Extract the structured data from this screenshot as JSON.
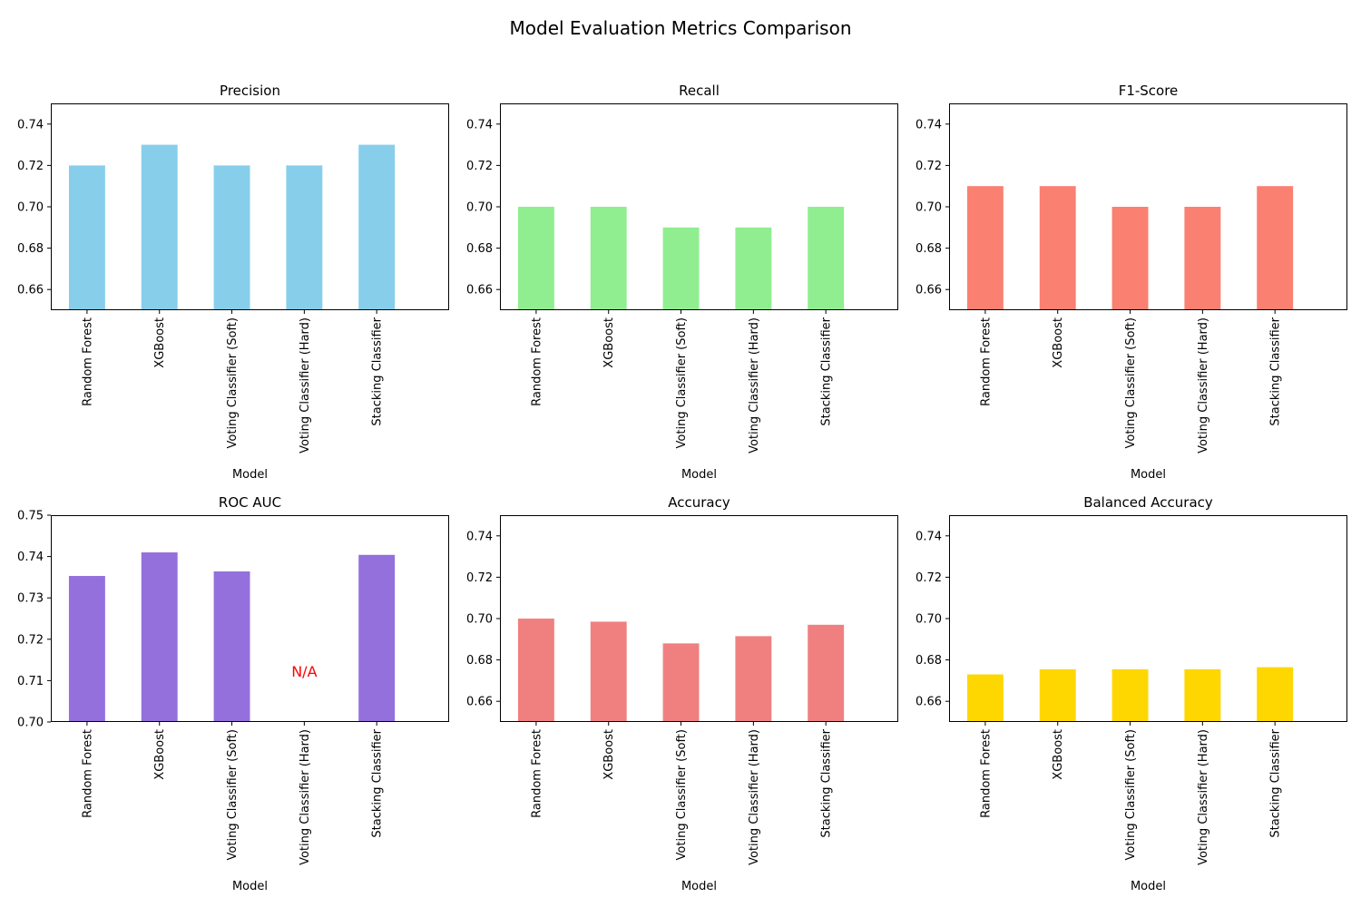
{
  "figure": {
    "title": "Model Evaluation Metrics Comparison"
  },
  "chart_data": [
    {
      "type": "bar",
      "title": "Precision",
      "xlabel": "Model",
      "ylabel": "",
      "categories": [
        "Random Forest",
        "XGBoost",
        "Voting Classifier (Soft)",
        "Voting Classifier (Hard)",
        "Stacking Classifier"
      ],
      "values": [
        0.72,
        0.73,
        0.72,
        0.72,
        0.73
      ],
      "ylim": [
        0.65,
        0.75
      ],
      "yticks": [
        0.66,
        0.68,
        0.7,
        0.72,
        0.74
      ],
      "ytick_labels": [
        "0.66",
        "0.68",
        "0.70",
        "0.72",
        "0.74"
      ],
      "color": "#87ceeb",
      "legend": false,
      "grid": false
    },
    {
      "type": "bar",
      "title": "Recall",
      "xlabel": "Model",
      "ylabel": "",
      "categories": [
        "Random Forest",
        "XGBoost",
        "Voting Classifier (Soft)",
        "Voting Classifier (Hard)",
        "Stacking Classifier"
      ],
      "values": [
        0.7,
        0.7,
        0.69,
        0.69,
        0.7
      ],
      "ylim": [
        0.65,
        0.75
      ],
      "yticks": [
        0.66,
        0.68,
        0.7,
        0.72,
        0.74
      ],
      "ytick_labels": [
        "0.66",
        "0.68",
        "0.70",
        "0.72",
        "0.74"
      ],
      "color": "#90ee90",
      "legend": false,
      "grid": false
    },
    {
      "type": "bar",
      "title": "F1-Score",
      "xlabel": "Model",
      "ylabel": "",
      "categories": [
        "Random Forest",
        "XGBoost",
        "Voting Classifier (Soft)",
        "Voting Classifier (Hard)",
        "Stacking Classifier"
      ],
      "values": [
        0.71,
        0.71,
        0.7,
        0.7,
        0.71
      ],
      "ylim": [
        0.65,
        0.75
      ],
      "yticks": [
        0.66,
        0.68,
        0.7,
        0.72,
        0.74
      ],
      "ytick_labels": [
        "0.66",
        "0.68",
        "0.70",
        "0.72",
        "0.74"
      ],
      "color": "#fa8072",
      "legend": false,
      "grid": false
    },
    {
      "type": "bar",
      "title": "ROC AUC",
      "xlabel": "Model",
      "ylabel": "",
      "categories": [
        "Random Forest",
        "XGBoost",
        "Voting Classifier (Soft)",
        "Voting Classifier (Hard)",
        "Stacking Classifier"
      ],
      "values": [
        0.7353,
        0.741,
        0.7364,
        null,
        0.7404
      ],
      "ylim": [
        0.7,
        0.75
      ],
      "yticks": [
        0.7,
        0.71,
        0.72,
        0.73,
        0.74,
        0.75
      ],
      "ytick_labels": [
        "0.70",
        "0.71",
        "0.72",
        "0.73",
        "0.74",
        "0.75"
      ],
      "color": "#9370db",
      "legend": false,
      "grid": false,
      "annotations": [
        {
          "category": "Voting Classifier (Hard)",
          "y": 0.711,
          "text": "N/A",
          "color": "#ff0000"
        }
      ]
    },
    {
      "type": "bar",
      "title": "Accuracy",
      "xlabel": "Model",
      "ylabel": "",
      "categories": [
        "Random Forest",
        "XGBoost",
        "Voting Classifier (Soft)",
        "Voting Classifier (Hard)",
        "Stacking Classifier"
      ],
      "values": [
        0.7,
        0.6985,
        0.688,
        0.6915,
        0.697
      ],
      "ylim": [
        0.65,
        0.75
      ],
      "yticks": [
        0.66,
        0.68,
        0.7,
        0.72,
        0.74
      ],
      "ytick_labels": [
        "0.66",
        "0.68",
        "0.70",
        "0.72",
        "0.74"
      ],
      "color": "#f08080",
      "legend": false,
      "grid": false
    },
    {
      "type": "bar",
      "title": "Balanced Accuracy",
      "xlabel": "Model",
      "ylabel": "",
      "categories": [
        "Random Forest",
        "XGBoost",
        "Voting Classifier (Soft)",
        "Voting Classifier (Hard)",
        "Stacking Classifier"
      ],
      "values": [
        0.673,
        0.6755,
        0.6755,
        0.6755,
        0.6765
      ],
      "ylim": [
        0.65,
        0.75
      ],
      "yticks": [
        0.66,
        0.68,
        0.7,
        0.72,
        0.74
      ],
      "ytick_labels": [
        "0.66",
        "0.68",
        "0.70",
        "0.72",
        "0.74"
      ],
      "color": "#ffd700",
      "legend": false,
      "grid": false
    }
  ]
}
